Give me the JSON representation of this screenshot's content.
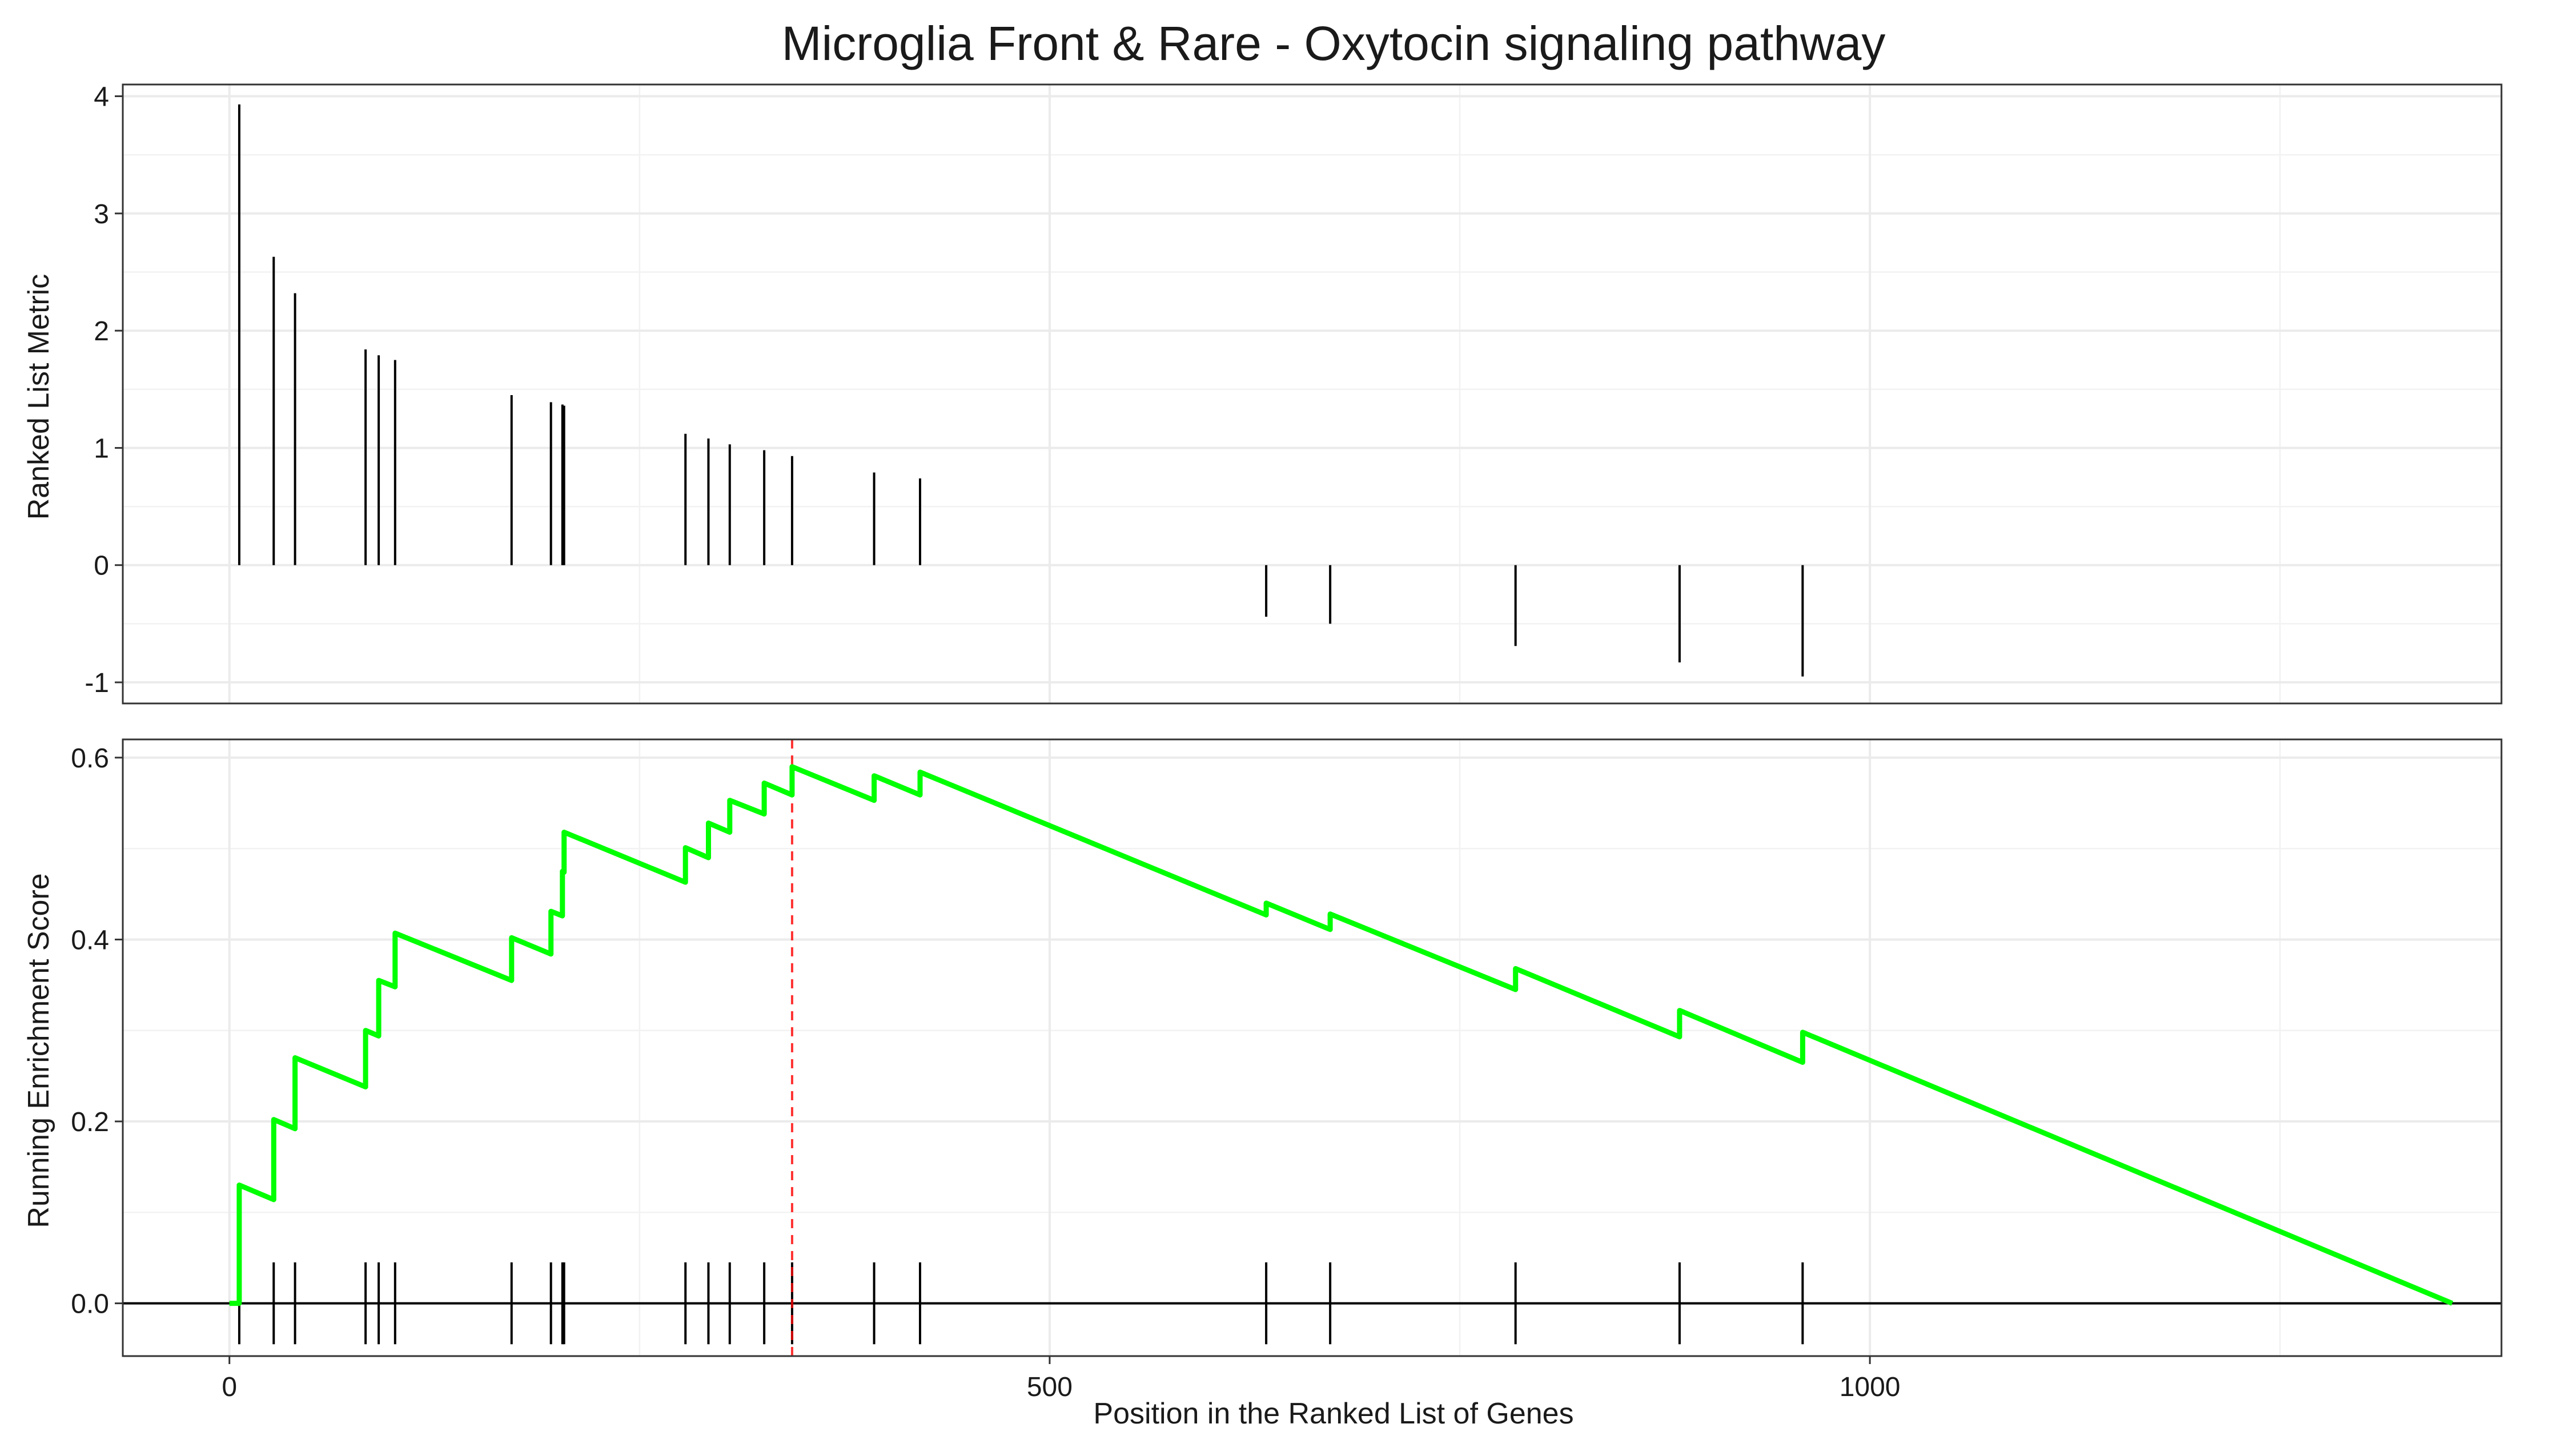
{
  "chart_data": [
    {
      "type": "bar",
      "title": "Microglia Front & Rare - Oxytocin signaling pathway",
      "xlabel": "",
      "ylabel": "Ranked List Metric",
      "xlim": [
        -65,
        1385
      ],
      "ylim": [
        -1.18,
        4.1
      ],
      "x_ticks": [
        0,
        500,
        1000
      ],
      "y_ticks": [
        -1,
        0,
        1,
        2,
        3,
        4
      ],
      "grid": true,
      "x": [
        6,
        27,
        40,
        83,
        91,
        101,
        172,
        196,
        203,
        204,
        278,
        292,
        305,
        326,
        343,
        393,
        421,
        632,
        671,
        784,
        884,
        959
      ],
      "values": [
        3.93,
        2.63,
        2.32,
        1.84,
        1.79,
        1.75,
        1.45,
        1.39,
        1.37,
        1.36,
        1.12,
        1.08,
        1.03,
        0.98,
        0.93,
        0.79,
        0.74,
        -0.44,
        -0.5,
        -0.69,
        -0.83,
        -0.95
      ]
    },
    {
      "type": "line",
      "xlabel": "Position in the Ranked List of Genes",
      "ylabel": "Running Enrichment Score",
      "xlim": [
        -65,
        1385
      ],
      "ylim": [
        -0.058,
        0.62
      ],
      "x_ticks": [
        0,
        500,
        1000
      ],
      "x_tick_labels": [
        "0",
        "500",
        "1000"
      ],
      "y_ticks": [
        0.0,
        0.2,
        0.4,
        0.6
      ],
      "y_tick_labels": [
        "0.0",
        "0.2",
        "0.4",
        "0.6"
      ],
      "grid": true,
      "series": [
        {
          "color": "#00ff00",
          "points": [
            [
              0,
              0
            ],
            [
              6,
              0
            ],
            [
              6,
              0.13
            ],
            [
              27,
              0.114
            ],
            [
              27,
              0.202
            ],
            [
              40,
              0.192
            ],
            [
              40,
              0.27
            ],
            [
              83,
              0.238
            ],
            [
              83,
              0.3
            ],
            [
              91,
              0.294
            ],
            [
              91,
              0.355
            ],
            [
              101,
              0.348
            ],
            [
              101,
              0.407
            ],
            [
              172,
              0.355
            ],
            [
              172,
              0.402
            ],
            [
              196,
              0.384
            ],
            [
              196,
              0.431
            ],
            [
              203,
              0.426
            ],
            [
              203,
              0.475
            ],
            [
              204,
              0.474
            ],
            [
              204,
              0.518
            ],
            [
              278,
              0.463
            ],
            [
              278,
              0.501
            ],
            [
              292,
              0.49
            ],
            [
              292,
              0.528
            ],
            [
              305,
              0.518
            ],
            [
              305,
              0.553
            ],
            [
              326,
              0.538
            ],
            [
              326,
              0.572
            ],
            [
              343,
              0.559
            ],
            [
              343,
              0.59
            ],
            [
              393,
              0.553
            ],
            [
              393,
              0.58
            ],
            [
              421,
              0.559
            ],
            [
              421,
              0.584
            ],
            [
              632,
              0.427
            ],
            [
              632,
              0.44
            ],
            [
              671,
              0.411
            ],
            [
              671,
              0.428
            ],
            [
              784,
              0.345
            ],
            [
              784,
              0.368
            ],
            [
              884,
              0.293
            ],
            [
              884,
              0.322
            ],
            [
              959,
              0.265
            ],
            [
              959,
              0.298
            ],
            [
              1355,
              0
            ]
          ]
        }
      ],
      "max_position": 343,
      "max_line_color": "#ff0000",
      "hit_positions": [
        6,
        27,
        40,
        83,
        91,
        101,
        172,
        196,
        203,
        204,
        278,
        292,
        305,
        326,
        343,
        393,
        421,
        632,
        671,
        784,
        884,
        959
      ]
    }
  ]
}
